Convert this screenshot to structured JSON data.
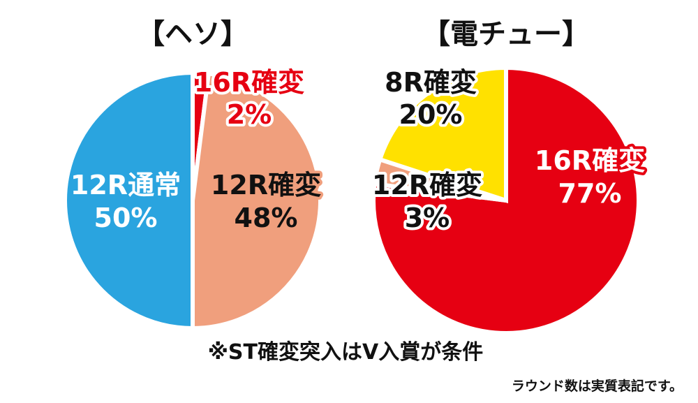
{
  "colors": {
    "blue": "#2aa4df",
    "salmon": "#f09f7d",
    "red": "#e60012",
    "yellow": "#ffe100",
    "white": "#ffffff",
    "black": "#111111"
  },
  "chart_data": [
    {
      "type": "pie",
      "title": "【ヘソ】",
      "slices": [
        {
          "name": "16R確変",
          "value": 2,
          "label": "2%",
          "color": "#e60012",
          "text_color": "#e60012",
          "outline_color": "#ffffff"
        },
        {
          "name": "12R確変",
          "value": 48,
          "label": "48%",
          "color": "#f09f7d",
          "text_color": "#111111",
          "outline_color": "#f09f7d"
        },
        {
          "name": "12R通常",
          "value": 50,
          "label": "50%",
          "color": "#2aa4df",
          "text_color": "#ffffff",
          "outline_color": "#2aa4df"
        }
      ]
    },
    {
      "type": "pie",
      "title": "【電チュー】",
      "slices": [
        {
          "name": "16R確変",
          "value": 77,
          "label": "77%",
          "color": "#e60012",
          "text_color": "#ffffff",
          "outline_color": "#e60012"
        },
        {
          "name": "12R確変",
          "value": 3,
          "label": "3%",
          "color": "#f09f7d",
          "text_color": "#111111",
          "outline_color": "#ffffff"
        },
        {
          "name": "8R確変",
          "value": 20,
          "label": "20%",
          "color": "#ffe100",
          "text_color": "#111111",
          "outline_color": "#ffffff"
        }
      ]
    }
  ],
  "footer": {
    "note": "※ST確変突入はV入賞が条件",
    "sub_note": "ラウンド数は実質表記です。"
  }
}
